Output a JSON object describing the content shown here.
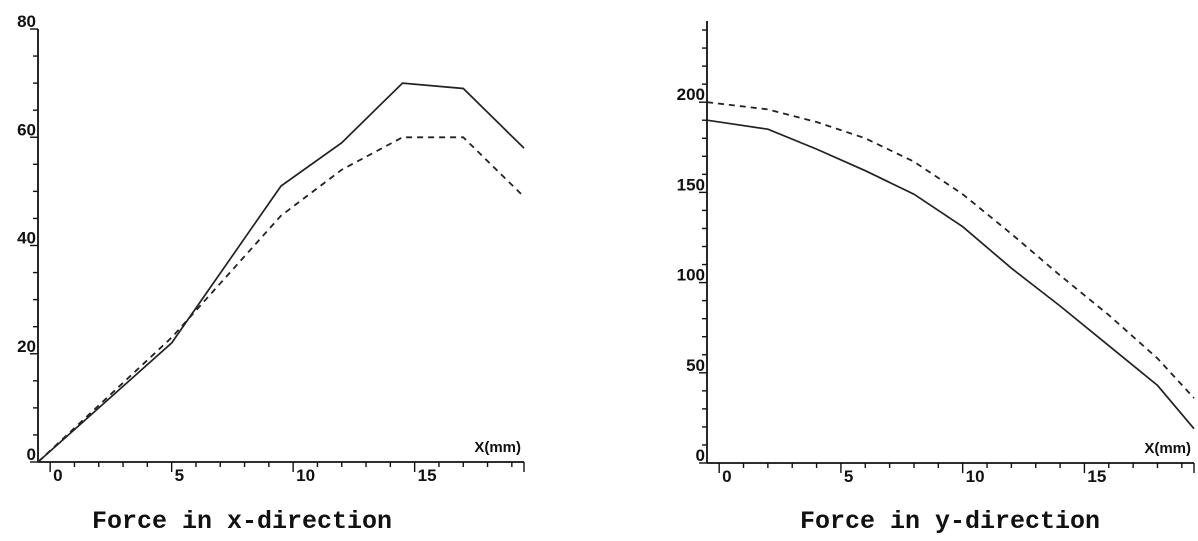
{
  "chart_data": [
    {
      "type": "line",
      "caption": "Force in x-direction",
      "x_unit_label": "X(mm)",
      "xlim": [
        -0.5,
        19.5
      ],
      "ylim": [
        0,
        80
      ],
      "x_ticks": [
        0,
        5,
        10,
        15
      ],
      "y_ticks": [
        0,
        20,
        40,
        60,
        80
      ],
      "x_minor_step": 1,
      "y_minor_step": 5,
      "grid": false,
      "series": [
        {
          "style": "solid",
          "x": [
            -0.5,
            2,
            5,
            9.5,
            12,
            14.5,
            17,
            19.5
          ],
          "y": [
            0,
            10,
            22,
            51,
            59,
            70,
            69,
            58
          ]
        },
        {
          "style": "dashed",
          "x": [
            -0.5,
            5,
            9.5,
            12,
            14.5,
            17,
            19.5
          ],
          "y": [
            0,
            23,
            45.5,
            54,
            60,
            60,
            49
          ]
        }
      ]
    },
    {
      "type": "line",
      "caption": "Force in y-direction",
      "x_unit_label": "X(mm)",
      "xlim": [
        -0.5,
        19.5
      ],
      "ylim": [
        0,
        245
      ],
      "x_ticks": [
        0,
        5,
        10,
        15
      ],
      "y_ticks": [
        0,
        50,
        100,
        150,
        200
      ],
      "x_minor_step": 1,
      "y_minor_step": 10,
      "grid": false,
      "series": [
        {
          "style": "solid",
          "x": [
            -0.5,
            2,
            4,
            6,
            8,
            10,
            12,
            14,
            16,
            18,
            19.5
          ],
          "y": [
            190,
            185,
            174,
            162,
            149,
            131,
            108,
            87,
            65,
            43,
            19
          ]
        },
        {
          "style": "dashed",
          "x": [
            -0.5,
            2,
            4,
            6,
            8,
            10,
            12,
            14,
            16,
            18,
            19.5
          ],
          "y": [
            200,
            196,
            189,
            180,
            167,
            149,
            127,
            104,
            82,
            58,
            36
          ]
        }
      ]
    }
  ]
}
